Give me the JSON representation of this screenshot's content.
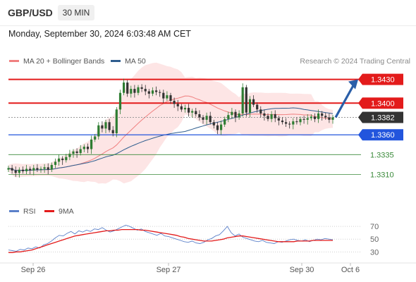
{
  "header": {
    "symbol": "GBP/USD",
    "timeframe": "30 MIN",
    "datetime": "Monday, September 30, 2024 6:03:48 AM CET"
  },
  "legend": {
    "ma20": "MA 20 + Bollinger Bands",
    "ma50": "MA 50",
    "credit": "Research © 2024 Trading Central",
    "rsi": "RSI",
    "ma9": "9MA"
  },
  "colors": {
    "ma20": "#f08080",
    "ma50": "#2e5d8e",
    "resistance": "#e31b1b",
    "current": "#333333",
    "pivot": "#2255dd",
    "support": "#3a8a3a",
    "bull": "#2e7d32",
    "bear": "#333333",
    "bollinger": "#fde0e0",
    "rsi": "#5b80c9",
    "ma9": "#e31b1b"
  },
  "chart_data": [
    {
      "type": "candlestick",
      "x_labels": [
        "Sep 26",
        "Sep 27",
        "Sep 30",
        "Oct 6"
      ],
      "y_range": [
        1.3297,
        1.3443
      ],
      "levels": [
        {
          "value": 1.343,
          "label": "1.3430",
          "kind": "resistance"
        },
        {
          "value": 1.34,
          "label": "1.3400",
          "kind": "resistance"
        },
        {
          "value": 1.3382,
          "label": "1.3382",
          "kind": "current"
        },
        {
          "value": 1.336,
          "label": "1.3360",
          "kind": "pivot"
        },
        {
          "value": 1.3335,
          "label": "1.3335",
          "kind": "support"
        },
        {
          "value": 1.331,
          "label": "1.3310",
          "kind": "support"
        }
      ],
      "forecast": {
        "from": 1.3382,
        "to": 1.343,
        "direction": "up"
      },
      "close_series": [
        1.3318,
        1.3315,
        1.3312,
        1.3316,
        1.3314,
        1.3317,
        1.3315,
        1.3318,
        1.3316,
        1.3317,
        1.3319,
        1.3316,
        1.3322,
        1.3326,
        1.333,
        1.3328,
        1.3332,
        1.3336,
        1.3339,
        1.3337,
        1.3342,
        1.3345,
        1.3342,
        1.3354,
        1.3358,
        1.3372,
        1.3368,
        1.3376,
        1.3366,
        1.3362,
        1.3392,
        1.3413,
        1.3426,
        1.3412,
        1.3418,
        1.3413,
        1.342,
        1.3418,
        1.3415,
        1.3412,
        1.3416,
        1.3414,
        1.3413,
        1.3406,
        1.341,
        1.3403,
        1.3399,
        1.3396,
        1.3392,
        1.3394,
        1.3388,
        1.339,
        1.3386,
        1.3382,
        1.3379,
        1.3384,
        1.3376,
        1.3372,
        1.3366,
        1.3373,
        1.338,
        1.3385,
        1.3389,
        1.3382,
        1.3387,
        1.342,
        1.3388,
        1.3405,
        1.3398,
        1.3392,
        1.3387,
        1.3384,
        1.338,
        1.3386,
        1.3381,
        1.3378,
        1.3376,
        1.3374,
        1.3373,
        1.3377,
        1.3376,
        1.338,
        1.3379,
        1.3381,
        1.3383,
        1.338,
        1.3387,
        1.3384,
        1.3382,
        1.3379,
        1.3382
      ]
    },
    {
      "type": "line",
      "series": [
        {
          "name": "RSI",
          "values": [
            33,
            32,
            31,
            34,
            33,
            36,
            35,
            38,
            36,
            41,
            43,
            47,
            52,
            56,
            55,
            59,
            62,
            58,
            63,
            61,
            64,
            62,
            66,
            65,
            68,
            64,
            61,
            63,
            66,
            69,
            72,
            70,
            67,
            64,
            66,
            62,
            60,
            58,
            56,
            59,
            55,
            54,
            52,
            50,
            48,
            46,
            45,
            47,
            44,
            43,
            45,
            49,
            51,
            55,
            57,
            63,
            70,
            60,
            55,
            58,
            53,
            51,
            49,
            47,
            46,
            48,
            45,
            44,
            43,
            46,
            45,
            47,
            49,
            50,
            48,
            47,
            49,
            46,
            48,
            50,
            49,
            51,
            50,
            49
          ]
        },
        {
          "name": "9MA",
          "values": [
            29,
            29,
            30,
            30,
            31,
            32,
            33,
            35,
            37,
            39,
            41,
            43,
            45,
            47,
            49,
            51,
            53,
            55,
            56,
            57,
            58,
            59,
            60,
            61,
            62,
            63,
            63,
            64,
            64,
            65,
            65,
            65,
            65,
            65,
            64,
            64,
            63,
            62,
            61,
            60,
            59,
            58,
            57,
            56,
            54,
            53,
            51,
            50,
            49,
            48,
            47,
            47,
            47,
            48,
            49,
            50,
            52,
            53,
            54,
            55,
            55,
            54,
            53,
            52,
            51,
            50,
            49,
            48,
            47,
            46,
            46,
            46,
            46,
            46,
            47,
            47,
            47,
            47,
            48,
            48,
            48,
            48,
            48,
            48
          ]
        }
      ],
      "y_ticks": [
        70,
        50,
        30
      ],
      "y_range": [
        16,
        80
      ]
    }
  ]
}
